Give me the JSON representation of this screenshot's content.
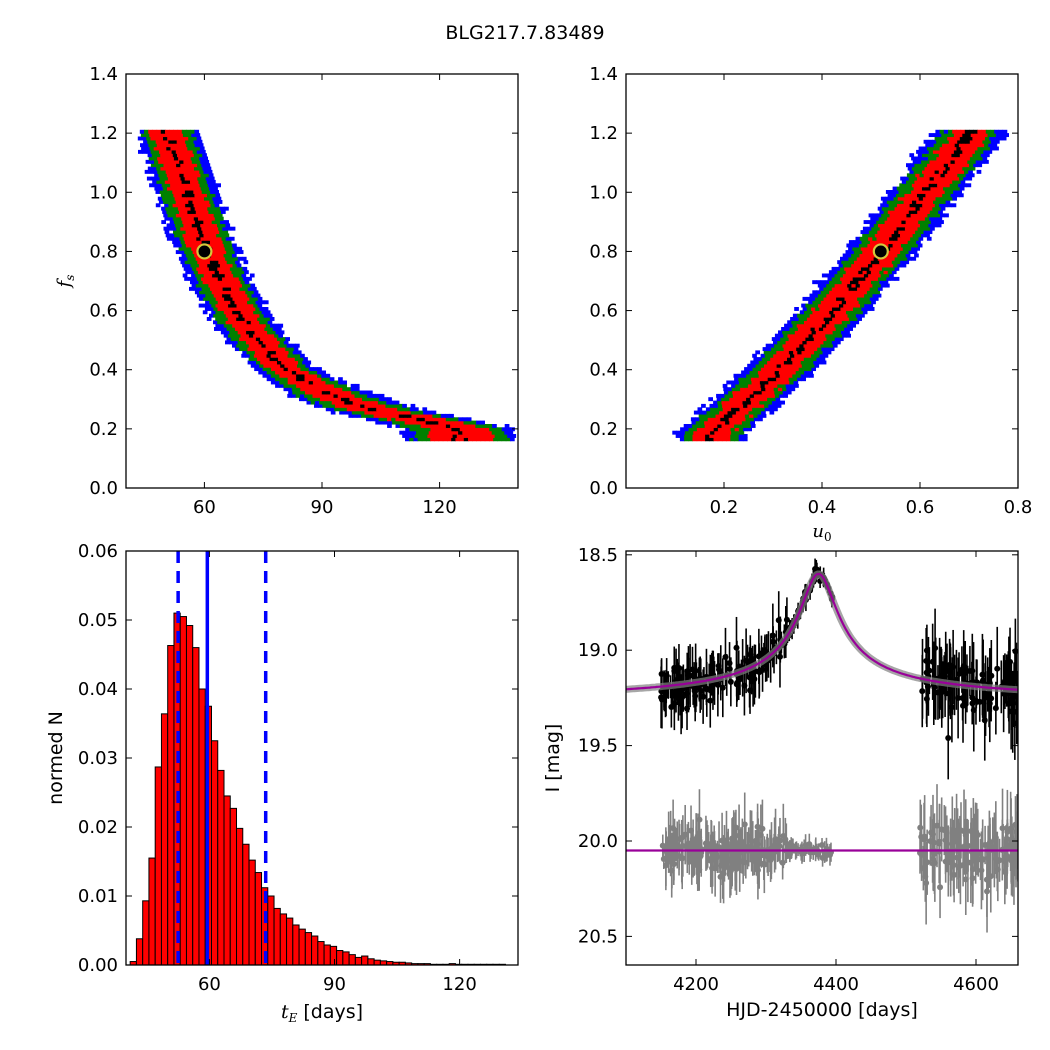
{
  "figure": {
    "title": "BLG217.7.83489"
  },
  "chart_data": [
    {
      "id": "fs_vs_tE",
      "type": "heatmap",
      "title": "",
      "xlabel": "",
      "ylabel": "f_s",
      "xlim": [
        40,
        140
      ],
      "ylim": [
        0.0,
        1.4
      ],
      "xticks": [
        60,
        90,
        120
      ],
      "xtick_labels": [
        "60",
        "90",
        "120"
      ],
      "yticks": [
        0.0,
        0.2,
        0.4,
        0.6,
        0.8,
        1.0,
        1.2,
        1.4
      ],
      "ytick_labels": [
        "0.0",
        "0.2",
        "0.4",
        "0.6",
        "0.8",
        "1.0",
        "1.2",
        "1.4"
      ],
      "levels": [
        {
          "name": "outer",
          "color": "#0000ff"
        },
        {
          "name": "middle",
          "color": "#008000"
        },
        {
          "name": "inner",
          "color": "#ff0000"
        },
        {
          "name": "core",
          "color": "#000000"
        }
      ],
      "band_centerline": [
        [
          50,
          1.2
        ],
        [
          55,
          1.0
        ],
        [
          60,
          0.8
        ],
        [
          65,
          0.66
        ],
        [
          70,
          0.55
        ],
        [
          75,
          0.47
        ],
        [
          80,
          0.4
        ],
        [
          90,
          0.32
        ],
        [
          100,
          0.27
        ],
        [
          110,
          0.24
        ],
        [
          120,
          0.21
        ],
        [
          125,
          0.19
        ]
      ],
      "best_fit": {
        "x": 60,
        "y": 0.8
      }
    },
    {
      "id": "fs_vs_u0",
      "type": "heatmap",
      "title": "",
      "xlabel": "u_0",
      "ylabel": "",
      "xlim": [
        0.0,
        0.8
      ],
      "ylim": [
        0.0,
        1.4
      ],
      "xticks": [
        0.2,
        0.4,
        0.6,
        0.8
      ],
      "xtick_labels": [
        "0.2",
        "0.4",
        "0.6",
        "0.8"
      ],
      "yticks": [
        0.0,
        0.2,
        0.4,
        0.6,
        0.8,
        1.0,
        1.2,
        1.4
      ],
      "ytick_labels": [
        "0.0",
        "0.2",
        "0.4",
        "0.6",
        "0.8",
        "1.0",
        "1.2",
        "1.4"
      ],
      "levels": [
        {
          "name": "outer",
          "color": "#0000ff"
        },
        {
          "name": "middle",
          "color": "#008000"
        },
        {
          "name": "inner",
          "color": "#ff0000"
        },
        {
          "name": "core",
          "color": "#000000"
        }
      ],
      "band_centerline": [
        [
          0.17,
          0.18
        ],
        [
          0.3,
          0.38
        ],
        [
          0.4,
          0.56
        ],
        [
          0.52,
          0.8
        ],
        [
          0.6,
          0.98
        ],
        [
          0.7,
          1.2
        ]
      ],
      "best_fit": {
        "x": 0.52,
        "y": 0.8
      }
    },
    {
      "id": "tE_histogram",
      "type": "bar",
      "title": "",
      "xlabel": "t_E [days]",
      "ylabel": "normed N",
      "xlim": [
        40,
        134
      ],
      "ylim": [
        0.0,
        0.06
      ],
      "xticks": [
        60,
        90,
        120
      ],
      "xtick_labels": [
        "60",
        "90",
        "120"
      ],
      "yticks": [
        0.0,
        0.01,
        0.02,
        0.03,
        0.04,
        0.05,
        0.06
      ],
      "ytick_labels": [
        "0.00",
        "0.01",
        "0.02",
        "0.03",
        "0.04",
        "0.05",
        "0.06"
      ],
      "bin_start": 41,
      "bin_width": 1.5,
      "values": [
        0.0005,
        0.0038,
        0.0093,
        0.0155,
        0.0287,
        0.0364,
        0.0463,
        0.051,
        0.0505,
        0.0492,
        0.046,
        0.04,
        0.0375,
        0.0325,
        0.0282,
        0.0245,
        0.0227,
        0.0198,
        0.0175,
        0.0152,
        0.0134,
        0.0112,
        0.01,
        0.0082,
        0.0074,
        0.0068,
        0.0058,
        0.0052,
        0.0047,
        0.0042,
        0.0034,
        0.0029,
        0.0027,
        0.0021,
        0.0019,
        0.0015,
        0.0011,
        0.0013,
        0.0009,
        0.0007,
        0.0006,
        0.0005,
        0.0004,
        0.0004,
        0.0003,
        0.0002,
        0.0002,
        0.0002,
        0.0001,
        0.0001,
        0.0001,
        0.0002,
        0.0001,
        0.0001,
        0.0001,
        0.0001,
        0.0001,
        0.0001,
        0.0001,
        0.0001
      ],
      "bar_color": "#ff0000",
      "median_line": 59.5,
      "interval_lines": [
        52.5,
        73.5
      ],
      "line_color": "#0000ff"
    },
    {
      "id": "light_curve",
      "type": "scatter",
      "title": "",
      "xlabel": "HJD-2450000 [days]",
      "ylabel": "I [mag]",
      "xlim": [
        4100,
        4660
      ],
      "ylim": [
        20.65,
        18.48
      ],
      "y_inverted": true,
      "xticks": [
        4200,
        4400,
        4600
      ],
      "xtick_labels": [
        "4200",
        "4400",
        "4600"
      ],
      "yticks": [
        18.5,
        19.0,
        19.5,
        20.0,
        20.5
      ],
      "ytick_labels": [
        "18.5",
        "19.0",
        "19.5",
        "20.0",
        "20.5"
      ],
      "model": {
        "t0": 4375,
        "baseline": 19.27,
        "peak": 18.6,
        "color": "#990099"
      },
      "residual_offset": 20.05,
      "series": [
        {
          "name": "",
          "color": "#000000",
          "segments": [
            [
              4150,
              4340
            ],
            [
              4340,
              4395
            ],
            [
              4520,
              4660
            ]
          ]
        },
        {
          "name": "",
          "color": "#808080",
          "segments": [
            [
              4150,
              4395
            ],
            [
              4520,
              4660
            ]
          ]
        }
      ]
    }
  ]
}
